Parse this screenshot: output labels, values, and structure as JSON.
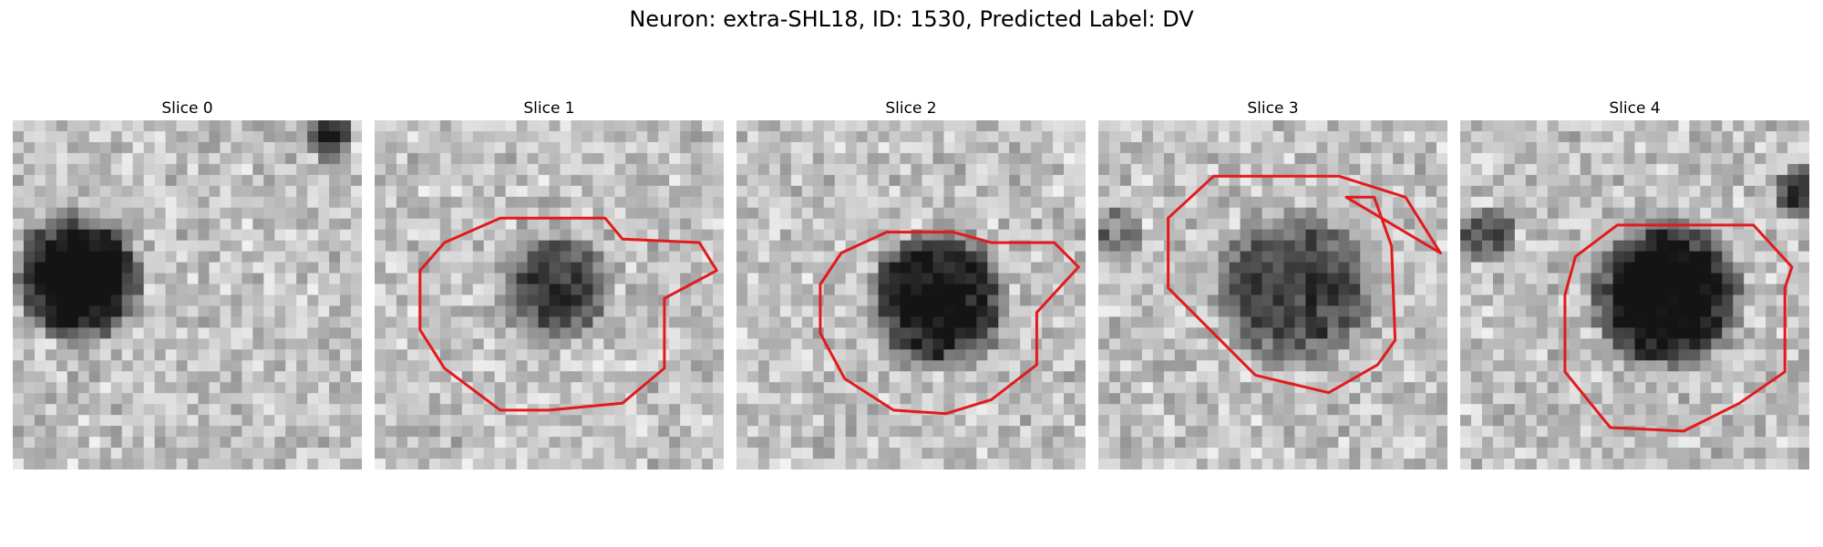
{
  "title": "Neuron: extra-SHL18, ID: 1530, Predicted Label: DV",
  "outline_color": "#e31a1c",
  "panels": [
    {
      "title": "Slice 0",
      "has_outline": false
    },
    {
      "title": "Slice 1",
      "has_outline": true
    },
    {
      "title": "Slice 2",
      "has_outline": true
    },
    {
      "title": "Slice 3",
      "has_outline": true
    },
    {
      "title": "Slice 4",
      "has_outline": true
    }
  ]
}
